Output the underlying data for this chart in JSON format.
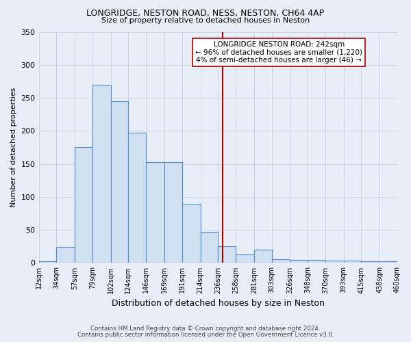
{
  "title1": "LONGRIDGE, NESTON ROAD, NESS, NESTON, CH64 4AP",
  "title2": "Size of property relative to detached houses in Neston",
  "xlabel": "Distribution of detached houses by size in Neston",
  "ylabel": "Number of detached properties",
  "annotation_title": "LONGRIDGE NESTON ROAD: 242sqm",
  "annotation_line1": "← 96% of detached houses are smaller (1,220)",
  "annotation_line2": "4% of semi-detached houses are larger (46) →",
  "footer1": "Contains HM Land Registry data © Crown copyright and database right 2024.",
  "footer2": "Contains public sector information licensed under the Open Government Licence v3.0.",
  "bins": [
    12,
    34,
    57,
    79,
    102,
    124,
    146,
    169,
    191,
    214,
    236,
    258,
    281,
    303,
    326,
    348,
    370,
    393,
    415,
    438,
    460
  ],
  "bar_heights": [
    3,
    24,
    175,
    270,
    245,
    197,
    153,
    153,
    90,
    47,
    25,
    13,
    20,
    6,
    5,
    5,
    4,
    4,
    3,
    2
  ],
  "bin_labels": [
    "12sqm",
    "34sqm",
    "57sqm",
    "79sqm",
    "102sqm",
    "124sqm",
    "146sqm",
    "169sqm",
    "191sqm",
    "214sqm",
    "236sqm",
    "258sqm",
    "281sqm",
    "303sqm",
    "326sqm",
    "348sqm",
    "370sqm",
    "393sqm",
    "415sqm",
    "438sqm",
    "460sqm"
  ],
  "bar_color": "#d0e0f0",
  "bar_edge_color": "#5588cc",
  "vline_x": 242,
  "vline_color": "#aa0000",
  "ylim": [
    0,
    350
  ],
  "yticks": [
    0,
    50,
    100,
    150,
    200,
    250,
    300,
    350
  ],
  "background_color": "#e8eef8",
  "grid_color": "#c8d0e0",
  "annotation_box_facecolor": "#ffffff",
  "annotation_box_edgecolor": "#aa0000"
}
